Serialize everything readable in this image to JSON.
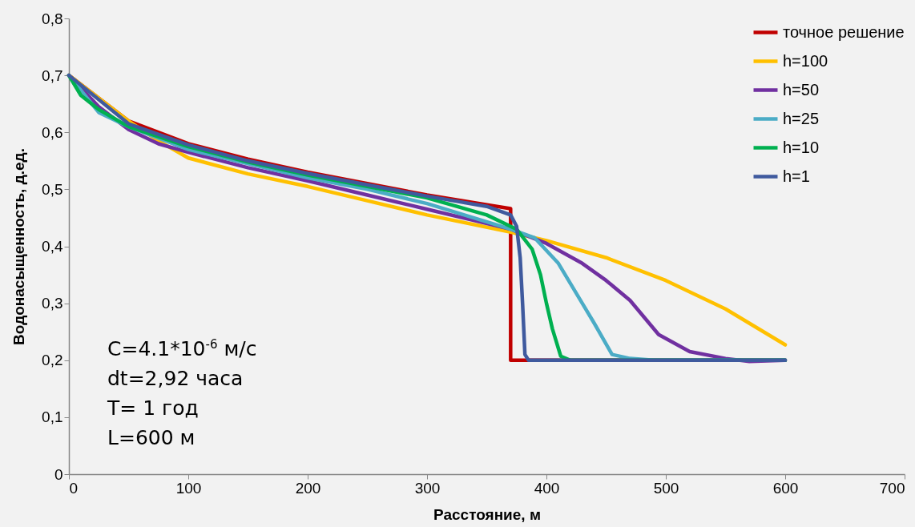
{
  "chart_data": {
    "type": "line",
    "xlabel": "Расстояние, м",
    "ylabel": "Водонасыщенность, д.ед.",
    "xlim": [
      0,
      700
    ],
    "xticks": [
      0,
      100,
      200,
      300,
      400,
      500,
      600,
      700
    ],
    "ylim": [
      0,
      0.8
    ],
    "yticks": [
      {
        "value": 0,
        "label": "0"
      },
      {
        "value": 0.1,
        "label": "0,1"
      },
      {
        "value": 0.2,
        "label": "0,2"
      },
      {
        "value": 0.3,
        "label": "0,3"
      },
      {
        "value": 0.4,
        "label": "0,4"
      },
      {
        "value": 0.5,
        "label": "0,5"
      },
      {
        "value": 0.6,
        "label": "0,6"
      },
      {
        "value": 0.7,
        "label": "0,7"
      },
      {
        "value": 0.8,
        "label": "0,8"
      }
    ],
    "grid": false,
    "legend": "top right",
    "marker": "none",
    "line_style": "solid",
    "annotations": [
      "C=4.1*10$^{-6}$ м/с",
      "dt=2,92 часа",
      "T= 1 год",
      "L=600 м"
    ],
    "series": [
      {
        "name": "точное решение",
        "color": "#c00000",
        "x": [
          0,
          50,
          100,
          150,
          200,
          250,
          300,
          370,
          370,
          600
        ],
        "values": [
          0.7,
          0.62,
          0.58,
          0.553,
          0.53,
          0.51,
          0.49,
          0.466,
          0.2,
          0.2
        ]
      },
      {
        "name": "h=100",
        "color": "#ffc000",
        "x": [
          0,
          25,
          50,
          75,
          100,
          150,
          200,
          250,
          300,
          370,
          400,
          450,
          500,
          550,
          600
        ],
        "values": [
          0.7,
          0.66,
          0.62,
          0.585,
          0.555,
          0.527,
          0.505,
          0.48,
          0.455,
          0.425,
          0.41,
          0.38,
          0.34,
          0.29,
          0.227
        ]
      },
      {
        "name": "h=50",
        "color": "#7030a0",
        "x": [
          0,
          25,
          50,
          75,
          100,
          150,
          200,
          250,
          300,
          370,
          400,
          430,
          450,
          470,
          494,
          520,
          550,
          570,
          600
        ],
        "values": [
          0.7,
          0.645,
          0.605,
          0.58,
          0.565,
          0.538,
          0.515,
          0.49,
          0.465,
          0.43,
          0.405,
          0.37,
          0.34,
          0.305,
          0.245,
          0.215,
          0.203,
          0.198,
          0.2
        ]
      },
      {
        "name": "h=25",
        "color": "#4bacc6",
        "x": [
          0,
          25,
          50,
          100,
          150,
          200,
          250,
          300,
          370,
          390,
          410,
          430,
          440,
          455,
          470,
          490,
          600
        ],
        "values": [
          0.7,
          0.635,
          0.61,
          0.57,
          0.545,
          0.52,
          0.5,
          0.475,
          0.43,
          0.415,
          0.37,
          0.3,
          0.265,
          0.21,
          0.203,
          0.2,
          0.2
        ]
      },
      {
        "name": "h=10",
        "color": "#00b050",
        "x": [
          0,
          10,
          25,
          50,
          100,
          150,
          200,
          250,
          300,
          350,
          375,
          388,
          395,
          400,
          405,
          412,
          420,
          600
        ],
        "values": [
          0.7,
          0.665,
          0.64,
          0.61,
          0.575,
          0.548,
          0.525,
          0.505,
          0.485,
          0.455,
          0.43,
          0.395,
          0.35,
          0.3,
          0.255,
          0.207,
          0.2,
          0.2
        ]
      },
      {
        "name": "h=1",
        "color": "#3f5a9e",
        "x": [
          0,
          50,
          100,
          150,
          200,
          250,
          300,
          350,
          370,
          375,
          378,
          380,
          382,
          385,
          600
        ],
        "values": [
          0.7,
          0.615,
          0.578,
          0.55,
          0.528,
          0.508,
          0.488,
          0.47,
          0.455,
          0.435,
          0.38,
          0.3,
          0.21,
          0.2,
          0.2
        ]
      }
    ]
  }
}
